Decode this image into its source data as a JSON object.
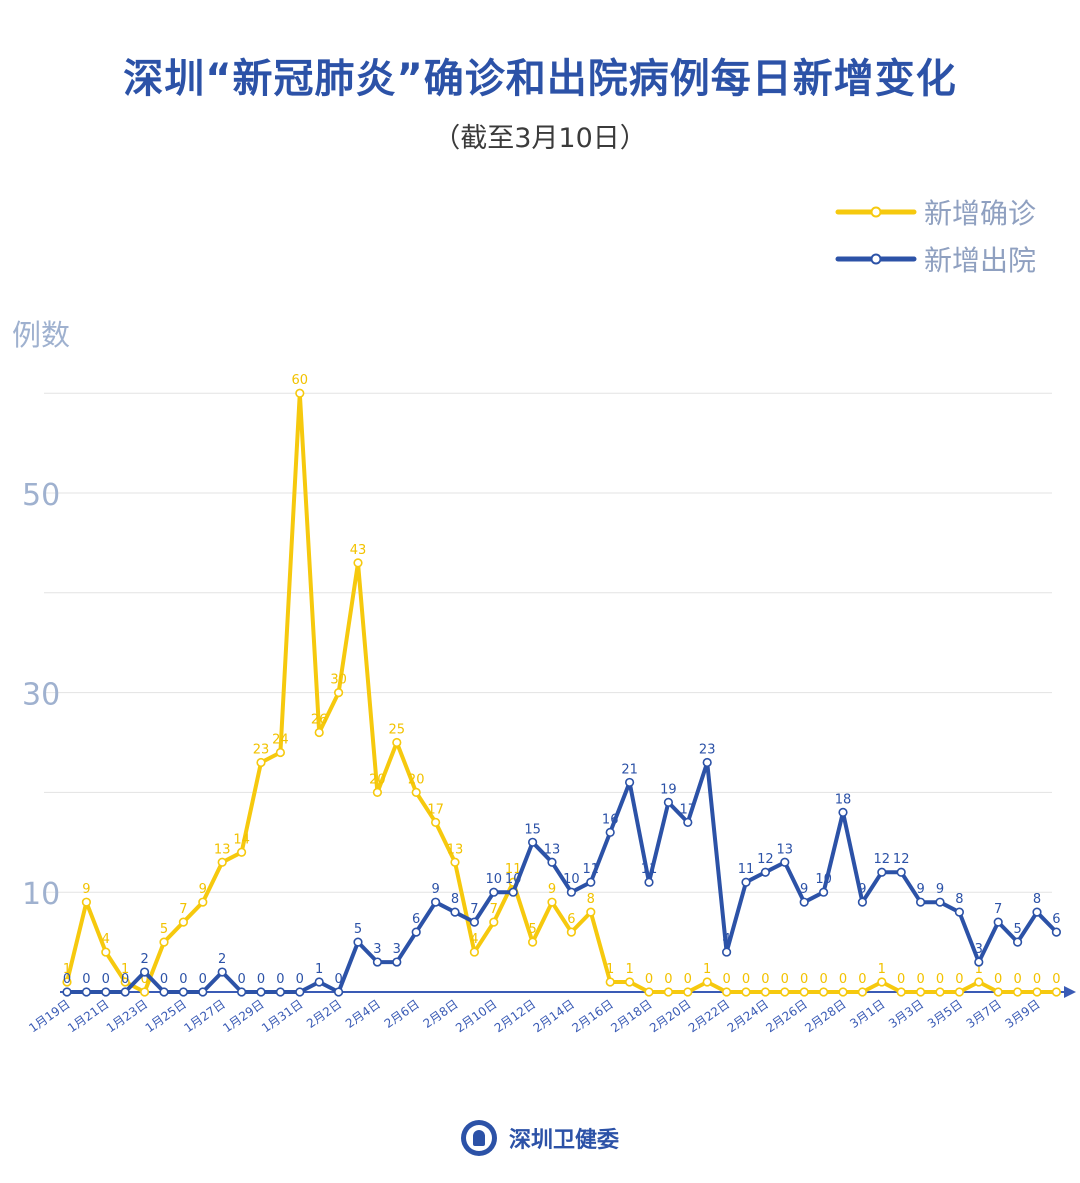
{
  "header": {
    "title": "深圳“新冠肺炎”确诊和出院病例每日新增变化",
    "subtitle": "（截至3月10日）"
  },
  "footer": {
    "org": "深圳卫健委"
  },
  "colors": {
    "confirmed": "#f6c90e",
    "discharged": "#2c52a7",
    "axis": "#3a5bb5",
    "tick": "#9fb1cf",
    "grid": "#e3e3e3"
  },
  "chart_data": {
    "type": "line",
    "ylabel": "例数",
    "yticks": [
      10,
      30,
      50
    ],
    "ylim": [
      0,
      65
    ],
    "grid": true,
    "legend_position": "top-right",
    "x": [
      "1月19日",
      "1月20日",
      "1月21日",
      "1月22日",
      "1月23日",
      "1月24日",
      "1月25日",
      "1月26日",
      "1月27日",
      "1月28日",
      "1月29日",
      "1月30日",
      "1月31日",
      "2月1日",
      "2月2日",
      "2月3日",
      "2月4日",
      "2月5日",
      "2月6日",
      "2月7日",
      "2月8日",
      "2月9日",
      "2月10日",
      "2月11日",
      "2月12日",
      "2月13日",
      "2月14日",
      "2月15日",
      "2月16日",
      "2月17日",
      "2月18日",
      "2月19日",
      "2月20日",
      "2月21日",
      "2月22日",
      "2月23日",
      "2月24日",
      "2月25日",
      "2月26日",
      "2月27日",
      "2月28日",
      "2月29日",
      "3月1日",
      "3月2日",
      "3月3日",
      "3月4日",
      "3月5日",
      "3月6日",
      "3月7日",
      "3月8日",
      "3月9日",
      "3月10日"
    ],
    "xticks_shown": [
      "1月19日",
      "1月21日",
      "1月23日",
      "1月25日",
      "1月27日",
      "1月29日",
      "1月31日",
      "2月2日",
      "2月4日",
      "2月6日",
      "2月8日",
      "2月10日",
      "2月12日",
      "2月14日",
      "2月16日",
      "2月18日",
      "2月20日",
      "2月22日",
      "2月24日",
      "2月26日",
      "2月28日",
      "3月1日",
      "3月3日",
      "3月5日",
      "3月7日",
      "3月9日"
    ],
    "series": [
      {
        "name": "新增确诊",
        "values": [
          1,
          9,
          4,
          1,
          0,
          5,
          7,
          9,
          13,
          14,
          23,
          24,
          60,
          26,
          30,
          43,
          20,
          25,
          20,
          17,
          13,
          4,
          7,
          11,
          5,
          9,
          6,
          8,
          1,
          1,
          0,
          0,
          0,
          1,
          0,
          0,
          0,
          0,
          0,
          0,
          0,
          0,
          1,
          0,
          0,
          0,
          0,
          1,
          0,
          0,
          0,
          0
        ]
      },
      {
        "name": "新增出院",
        "values": [
          0,
          0,
          0,
          0,
          2,
          0,
          0,
          0,
          2,
          0,
          0,
          0,
          0,
          1,
          0,
          5,
          3,
          3,
          6,
          9,
          8,
          7,
          10,
          10,
          15,
          13,
          10,
          11,
          16,
          21,
          11,
          19,
          17,
          23,
          4,
          11,
          12,
          13,
          9,
          10,
          18,
          9,
          12,
          12,
          9,
          9,
          8,
          3,
          7,
          5,
          8,
          6
        ]
      }
    ]
  }
}
